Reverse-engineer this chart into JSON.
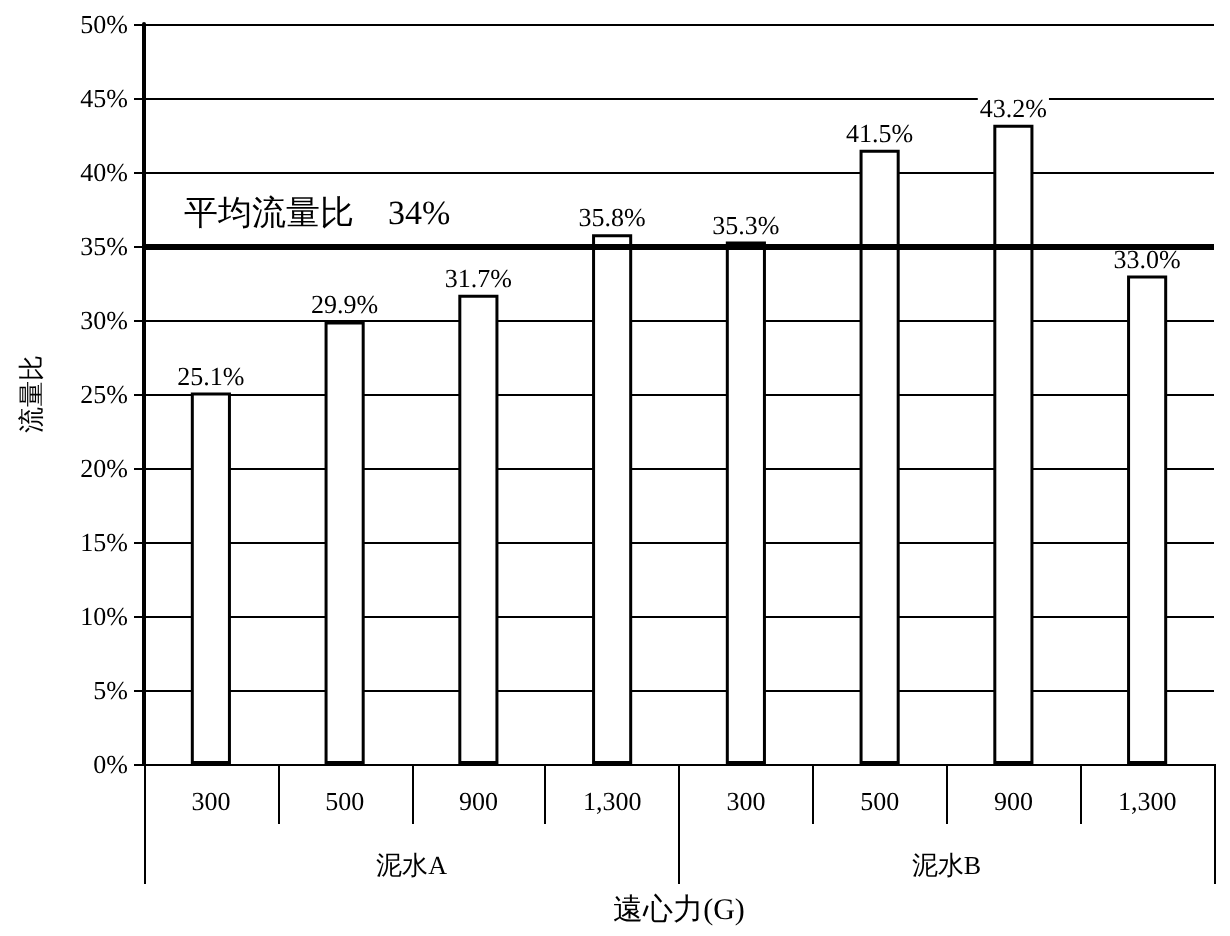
{
  "chart_data": {
    "type": "bar",
    "categories": [
      "300",
      "500",
      "900",
      "1,300",
      "300",
      "500",
      "900",
      "1,300"
    ],
    "series": [
      {
        "color": "#ffffff",
        "values": [
          25.1,
          29.9,
          31.7,
          35.8,
          35.3,
          41.5,
          43.2,
          33.0
        ],
        "value_labels": [
          "25.1%",
          "29.9%",
          "31.7%",
          "35.8%",
          "35.3%",
          "41.5%",
          "43.2%",
          "33.0%"
        ]
      }
    ],
    "annotations": [
      "泥水A",
      "泥水B"
    ],
    "xlabel": "遠心力(G)",
    "ylabel": "流量比",
    "ylim": [
      0,
      50
    ],
    "yticks": [
      {
        "value": 0,
        "label": "0%"
      },
      {
        "value": 5,
        "label": "5%"
      },
      {
        "value": 10,
        "label": "10%"
      },
      {
        "value": 15,
        "label": "15%"
      },
      {
        "value": 20,
        "label": "20%"
      },
      {
        "value": 25,
        "label": "25%"
      },
      {
        "value": 30,
        "label": "30%"
      },
      {
        "value": 35,
        "label": "35%"
      },
      {
        "value": 40,
        "label": "40%"
      },
      {
        "value": 45,
        "label": "45%"
      },
      {
        "value": 50,
        "label": "50%"
      }
    ],
    "ref_lines": [
      {
        "axis": "y",
        "value": 35,
        "label": "平均流量比　34%",
        "color": "#000000"
      }
    ],
    "grid": "y"
  }
}
